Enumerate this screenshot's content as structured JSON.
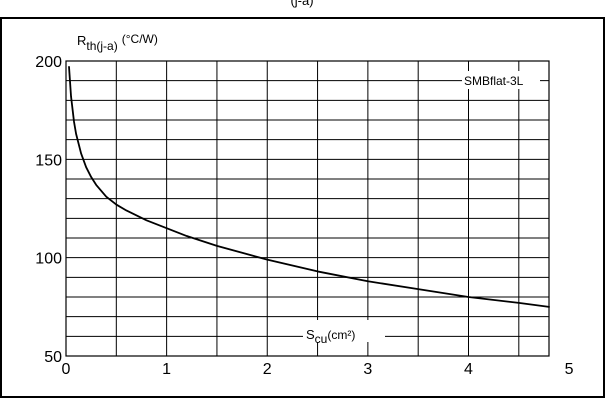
{
  "chart_data": {
    "type": "line",
    "title": "",
    "header_text": "(j-a)",
    "ylabel_main": "R",
    "ylabel_sub": "th(j-a)",
    "ylabel_unit": "(°C/W)",
    "xlabel_main": "S",
    "xlabel_sub": "cu",
    "xlabel_unit": "(cm²)",
    "xlim": [
      0,
      4.8
    ],
    "ylim": [
      50,
      200
    ],
    "x_ticks": [
      0,
      1,
      2,
      3,
      4,
      5
    ],
    "x_tick_labels": [
      "0",
      "1",
      "2",
      "3",
      "4",
      "5"
    ],
    "y_ticks": [
      50,
      100,
      150,
      200
    ],
    "y_tick_labels": [
      "50",
      "100",
      "150",
      "200"
    ],
    "grid": true,
    "legend_position": "top-right",
    "series": [
      {
        "name": "SMBflat-3L",
        "x": [
          0.03,
          0.05,
          0.08,
          0.1,
          0.15,
          0.2,
          0.25,
          0.3,
          0.4,
          0.5,
          0.6,
          0.8,
          1.0,
          1.2,
          1.5,
          2.0,
          2.5,
          3.0,
          3.5,
          4.0,
          4.5,
          4.8
        ],
        "y": [
          197,
          182,
          169,
          163,
          153,
          146,
          141,
          137,
          131,
          127,
          124,
          119,
          115,
          111,
          106,
          99,
          93,
          88,
          84,
          80,
          77,
          75
        ]
      }
    ]
  }
}
